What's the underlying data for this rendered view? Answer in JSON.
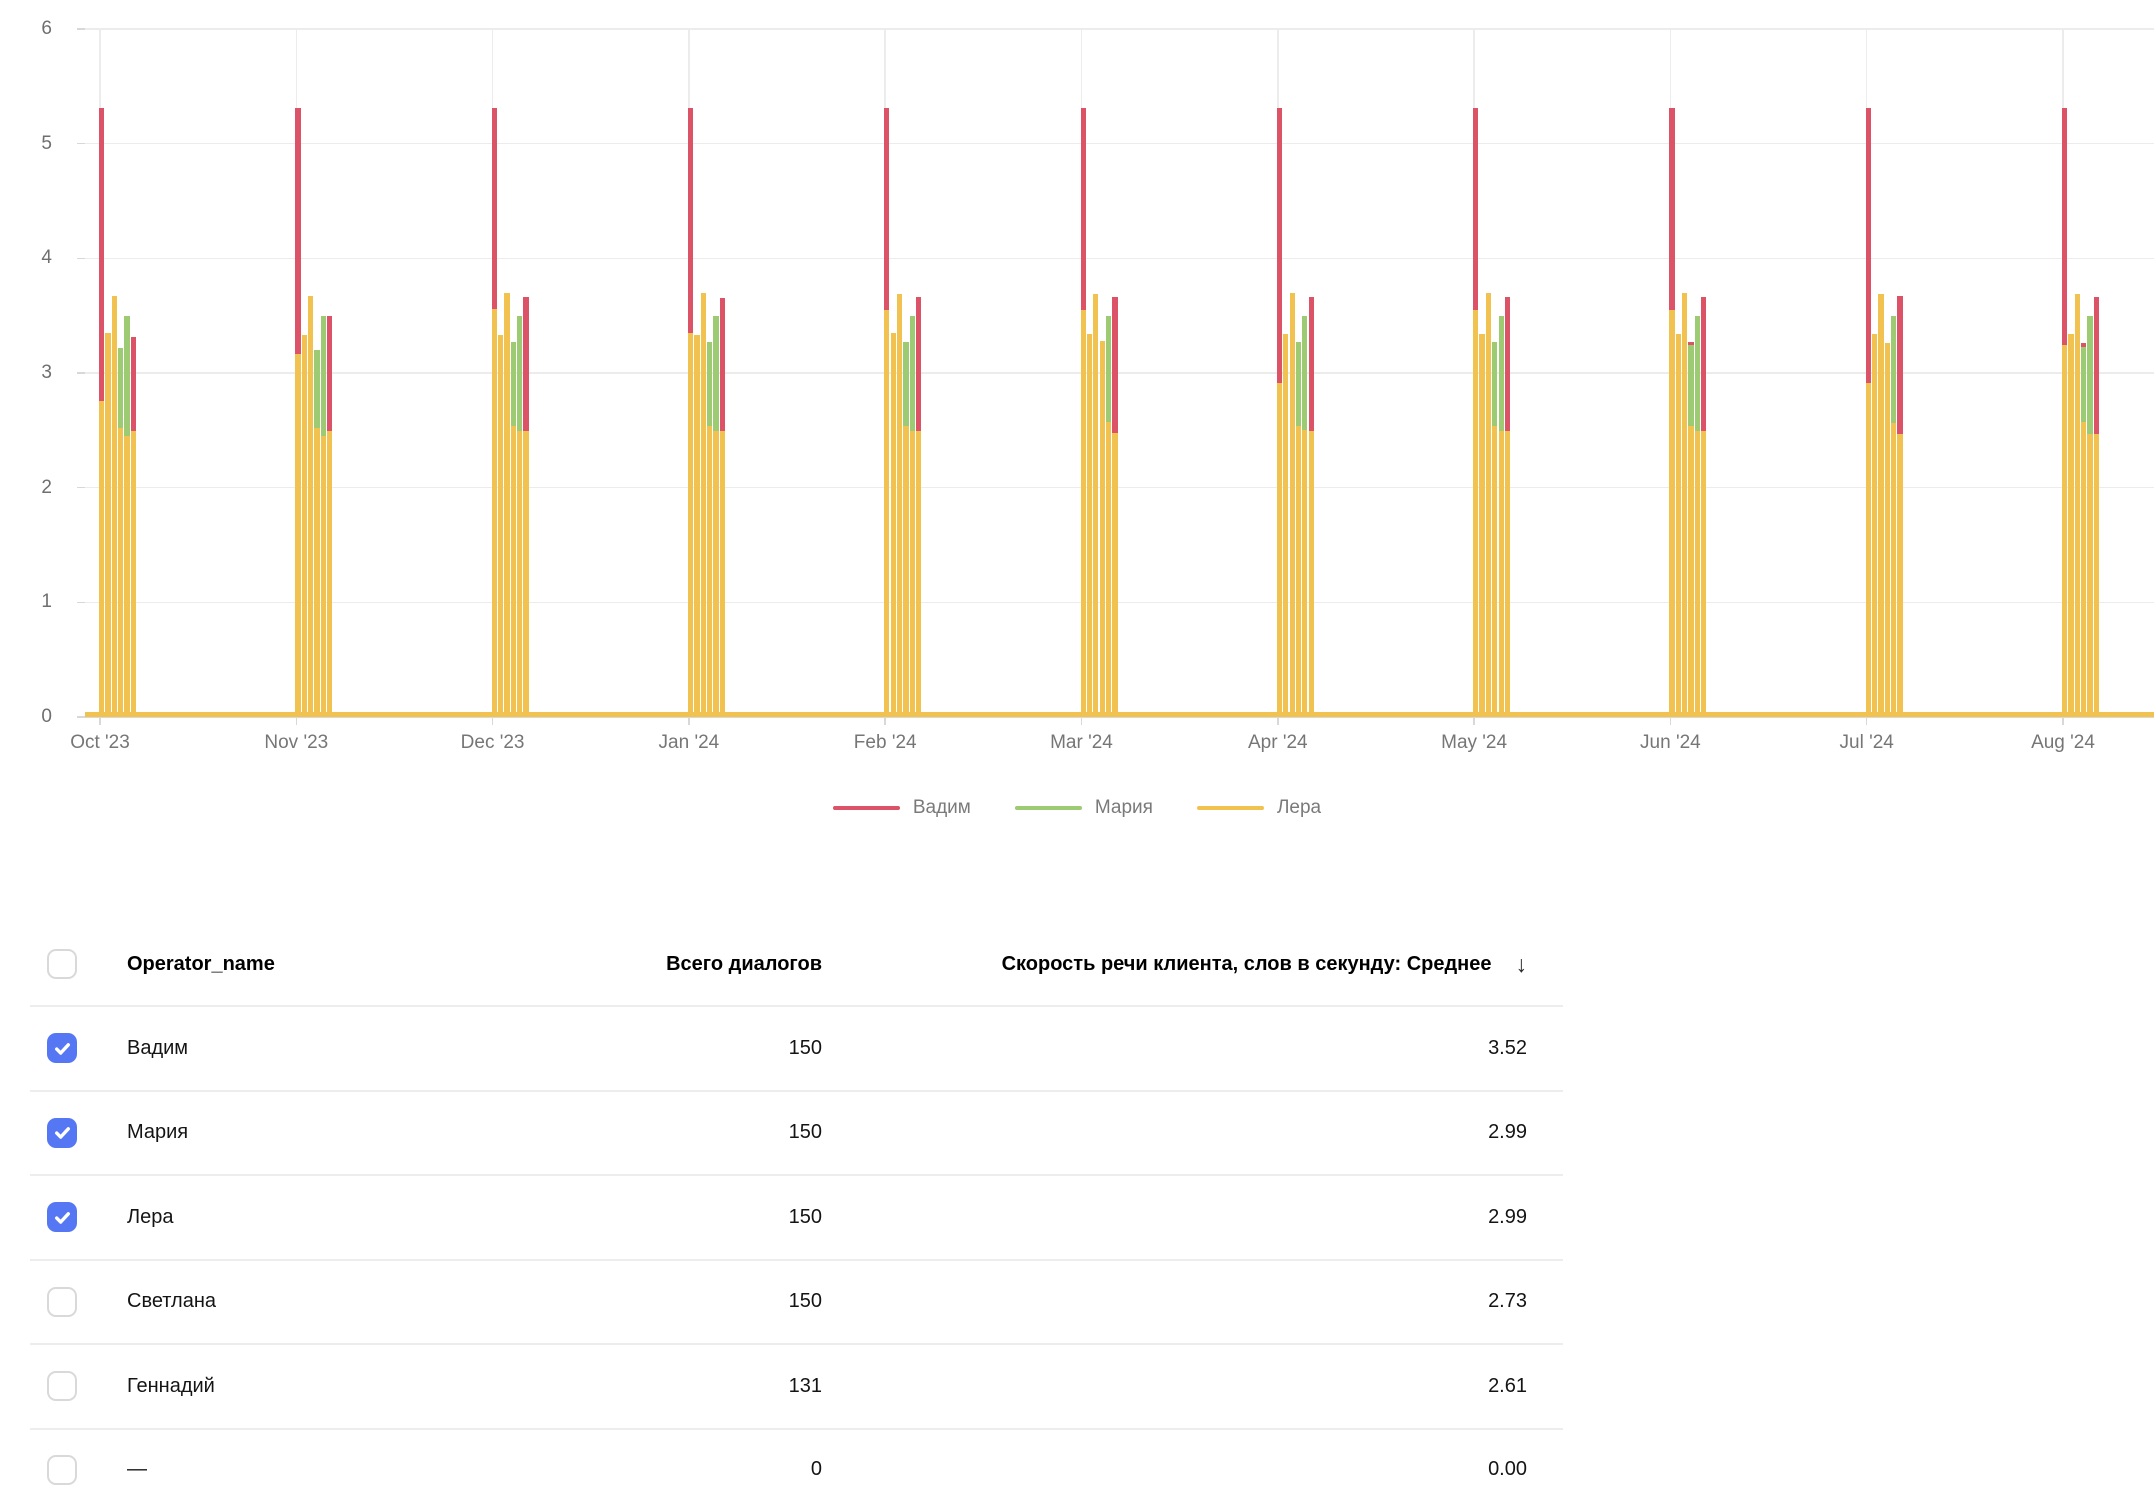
{
  "chart_data": {
    "type": "bar",
    "title": "",
    "xlabel": "",
    "ylabel": "",
    "y_range": [
      0,
      6
    ],
    "y_ticks": [
      0,
      1,
      2,
      3,
      4,
      5,
      6
    ],
    "grid": "on",
    "legend_position": "bottom",
    "series": [
      {
        "key": "vadim",
        "label": "Вадим",
        "color": "#dc5266"
      },
      {
        "key": "maria",
        "label": "Мария",
        "color": "#9ccb74"
      },
      {
        "key": "lera",
        "label": "Лера",
        "color": "#f1c250"
      }
    ],
    "baseline": {
      "series": "lera",
      "value": 0.04,
      "note": "continuous near-zero yellow line along x-axis"
    },
    "months": [
      {
        "label": "Oct '23",
        "slots": [
          [
            [
              "vadim",
              5.31
            ],
            [
              "lera",
              2.76
            ]
          ],
          [
            [
              "lera",
              3.35
            ]
          ],
          [
            [
              "lera",
              3.67
            ]
          ],
          [
            [
              "maria",
              3.22
            ],
            [
              "lera",
              2.52
            ]
          ],
          [
            [
              "maria",
              3.5
            ],
            [
              "lera",
              2.45
            ]
          ],
          [
            [
              "vadim",
              3.31
            ],
            [
              "lera",
              2.49
            ]
          ]
        ]
      },
      {
        "label": "Nov '23",
        "slots": [
          [
            [
              "vadim",
              5.31
            ],
            [
              "lera",
              3.17
            ]
          ],
          [
            [
              "lera",
              3.33
            ]
          ],
          [
            [
              "lera",
              3.67
            ]
          ],
          [
            [
              "maria",
              3.2
            ],
            [
              "lera",
              2.52
            ]
          ],
          [
            [
              "maria",
              3.5
            ],
            [
              "lera",
              2.45
            ]
          ],
          [
            [
              "vadim",
              3.5
            ],
            [
              "lera",
              2.49
            ]
          ]
        ]
      },
      {
        "label": "Dec '23",
        "slots": [
          [
            [
              "vadim",
              5.31
            ],
            [
              "lera",
              3.56
            ]
          ],
          [
            [
              "lera",
              3.33
            ]
          ],
          [
            [
              "lera",
              3.7
            ]
          ],
          [
            [
              "maria",
              3.27
            ],
            [
              "lera",
              2.54
            ]
          ],
          [
            [
              "maria",
              3.5
            ],
            [
              "lera",
              2.49
            ]
          ],
          [
            [
              "vadim",
              3.66
            ],
            [
              "lera",
              2.49
            ]
          ]
        ]
      },
      {
        "label": "Jan '24",
        "slots": [
          [
            [
              "vadim",
              5.31
            ],
            [
              "lera",
              3.35
            ]
          ],
          [
            [
              "lera",
              3.33
            ]
          ],
          [
            [
              "lera",
              3.7
            ]
          ],
          [
            [
              "maria",
              3.27
            ],
            [
              "lera",
              2.54
            ]
          ],
          [
            [
              "maria",
              3.5
            ],
            [
              "lera",
              2.49
            ]
          ],
          [
            [
              "vadim",
              3.65
            ],
            [
              "lera",
              2.49
            ]
          ]
        ]
      },
      {
        "label": "Feb '24",
        "slots": [
          [
            [
              "vadim",
              5.31
            ],
            [
              "lera",
              3.55
            ]
          ],
          [
            [
              "lera",
              3.35
            ]
          ],
          [
            [
              "lera",
              3.69
            ]
          ],
          [
            [
              "maria",
              3.27
            ],
            [
              "lera",
              2.54
            ]
          ],
          [
            [
              "maria",
              3.5
            ],
            [
              "lera",
              2.49
            ]
          ],
          [
            [
              "vadim",
              3.66
            ],
            [
              "lera",
              2.49
            ]
          ]
        ]
      },
      {
        "label": "Mar '24",
        "slots": [
          [
            [
              "vadim",
              5.31
            ],
            [
              "lera",
              3.55
            ]
          ],
          [
            [
              "lera",
              3.34
            ]
          ],
          [
            [
              "lera",
              3.69
            ]
          ],
          [
            [
              "lera",
              3.28
            ]
          ],
          [
            [
              "maria",
              3.5
            ],
            [
              "lera",
              2.57
            ]
          ],
          [
            [
              "vadim",
              3.66
            ],
            [
              "lera",
              2.48
            ]
          ]
        ]
      },
      {
        "label": "Apr '24",
        "slots": [
          [
            [
              "vadim",
              5.31
            ],
            [
              "lera",
              2.91
            ]
          ],
          [
            [
              "lera",
              3.34
            ]
          ],
          [
            [
              "lera",
              3.7
            ]
          ],
          [
            [
              "maria",
              3.27
            ],
            [
              "lera",
              2.54
            ]
          ],
          [
            [
              "maria",
              3.5
            ],
            [
              "lera",
              2.5
            ]
          ],
          [
            [
              "vadim",
              3.66
            ],
            [
              "lera",
              2.49
            ]
          ]
        ]
      },
      {
        "label": "May '24",
        "slots": [
          [
            [
              "vadim",
              5.31
            ],
            [
              "lera",
              3.55
            ]
          ],
          [
            [
              "lera",
              3.34
            ]
          ],
          [
            [
              "lera",
              3.7
            ]
          ],
          [
            [
              "maria",
              3.27
            ],
            [
              "lera",
              2.54
            ]
          ],
          [
            [
              "maria",
              3.5
            ],
            [
              "lera",
              2.49
            ]
          ],
          [
            [
              "vadim",
              3.66
            ],
            [
              "lera",
              2.49
            ]
          ]
        ]
      },
      {
        "label": "Jun '24",
        "slots": [
          [
            [
              "vadim",
              5.31
            ],
            [
              "lera",
              3.55
            ]
          ],
          [
            [
              "lera",
              3.34
            ]
          ],
          [
            [
              "lera",
              3.7
            ]
          ],
          [
            [
              "vadim",
              3.27
            ],
            [
              "maria",
              3.24
            ],
            [
              "lera",
              2.54
            ]
          ],
          [
            [
              "maria",
              3.5
            ],
            [
              "lera",
              2.49
            ]
          ],
          [
            [
              "vadim",
              3.66
            ],
            [
              "lera",
              2.49
            ]
          ]
        ]
      },
      {
        "label": "Jul '24",
        "slots": [
          [
            [
              "vadim",
              5.31
            ],
            [
              "lera",
              2.91
            ]
          ],
          [
            [
              "lera",
              3.34
            ]
          ],
          [
            [
              "lera",
              3.69
            ]
          ],
          [
            [
              "lera",
              3.26
            ]
          ],
          [
            [
              "maria",
              3.5
            ],
            [
              "lera",
              2.56
            ]
          ],
          [
            [
              "vadim",
              3.67
            ],
            [
              "lera",
              2.47
            ]
          ]
        ]
      },
      {
        "label": "Aug '24",
        "slots": [
          [
            [
              "vadim",
              5.31
            ],
            [
              "lera",
              3.24
            ]
          ],
          [
            [
              "lera",
              3.34
            ]
          ],
          [
            [
              "lera",
              3.69
            ]
          ],
          [
            [
              "vadim",
              3.26
            ],
            [
              "maria",
              3.23
            ],
            [
              "lera",
              2.57
            ]
          ],
          [
            [
              "maria",
              3.5
            ],
            [
              "lera",
              2.47
            ]
          ],
          [
            [
              "vadim",
              3.66
            ],
            [
              "lera",
              2.47
            ]
          ]
        ]
      }
    ]
  },
  "table": {
    "columns": {
      "name": "Operator_name",
      "dialogs": "Всего диалогов",
      "speed": "Скорость речи клиента, слов в секунду: Среднее"
    },
    "sort_icon": "↓",
    "rows": [
      {
        "checked": true,
        "name": "Вадим",
        "dialogs": "150",
        "speed": "3.52"
      },
      {
        "checked": true,
        "name": "Мария",
        "dialogs": "150",
        "speed": "2.99"
      },
      {
        "checked": true,
        "name": "Лера",
        "dialogs": "150",
        "speed": "2.99"
      },
      {
        "checked": false,
        "name": "Светлана",
        "dialogs": "150",
        "speed": "2.73"
      },
      {
        "checked": false,
        "name": "Геннадий",
        "dialogs": "131",
        "speed": "2.61"
      },
      {
        "checked": false,
        "name": "—",
        "dialogs": "0",
        "speed": "0.00"
      }
    ]
  },
  "colors": {
    "checkbox_on": "#5677f3",
    "grid": "#ececec",
    "axis": "#d8d8d8"
  }
}
